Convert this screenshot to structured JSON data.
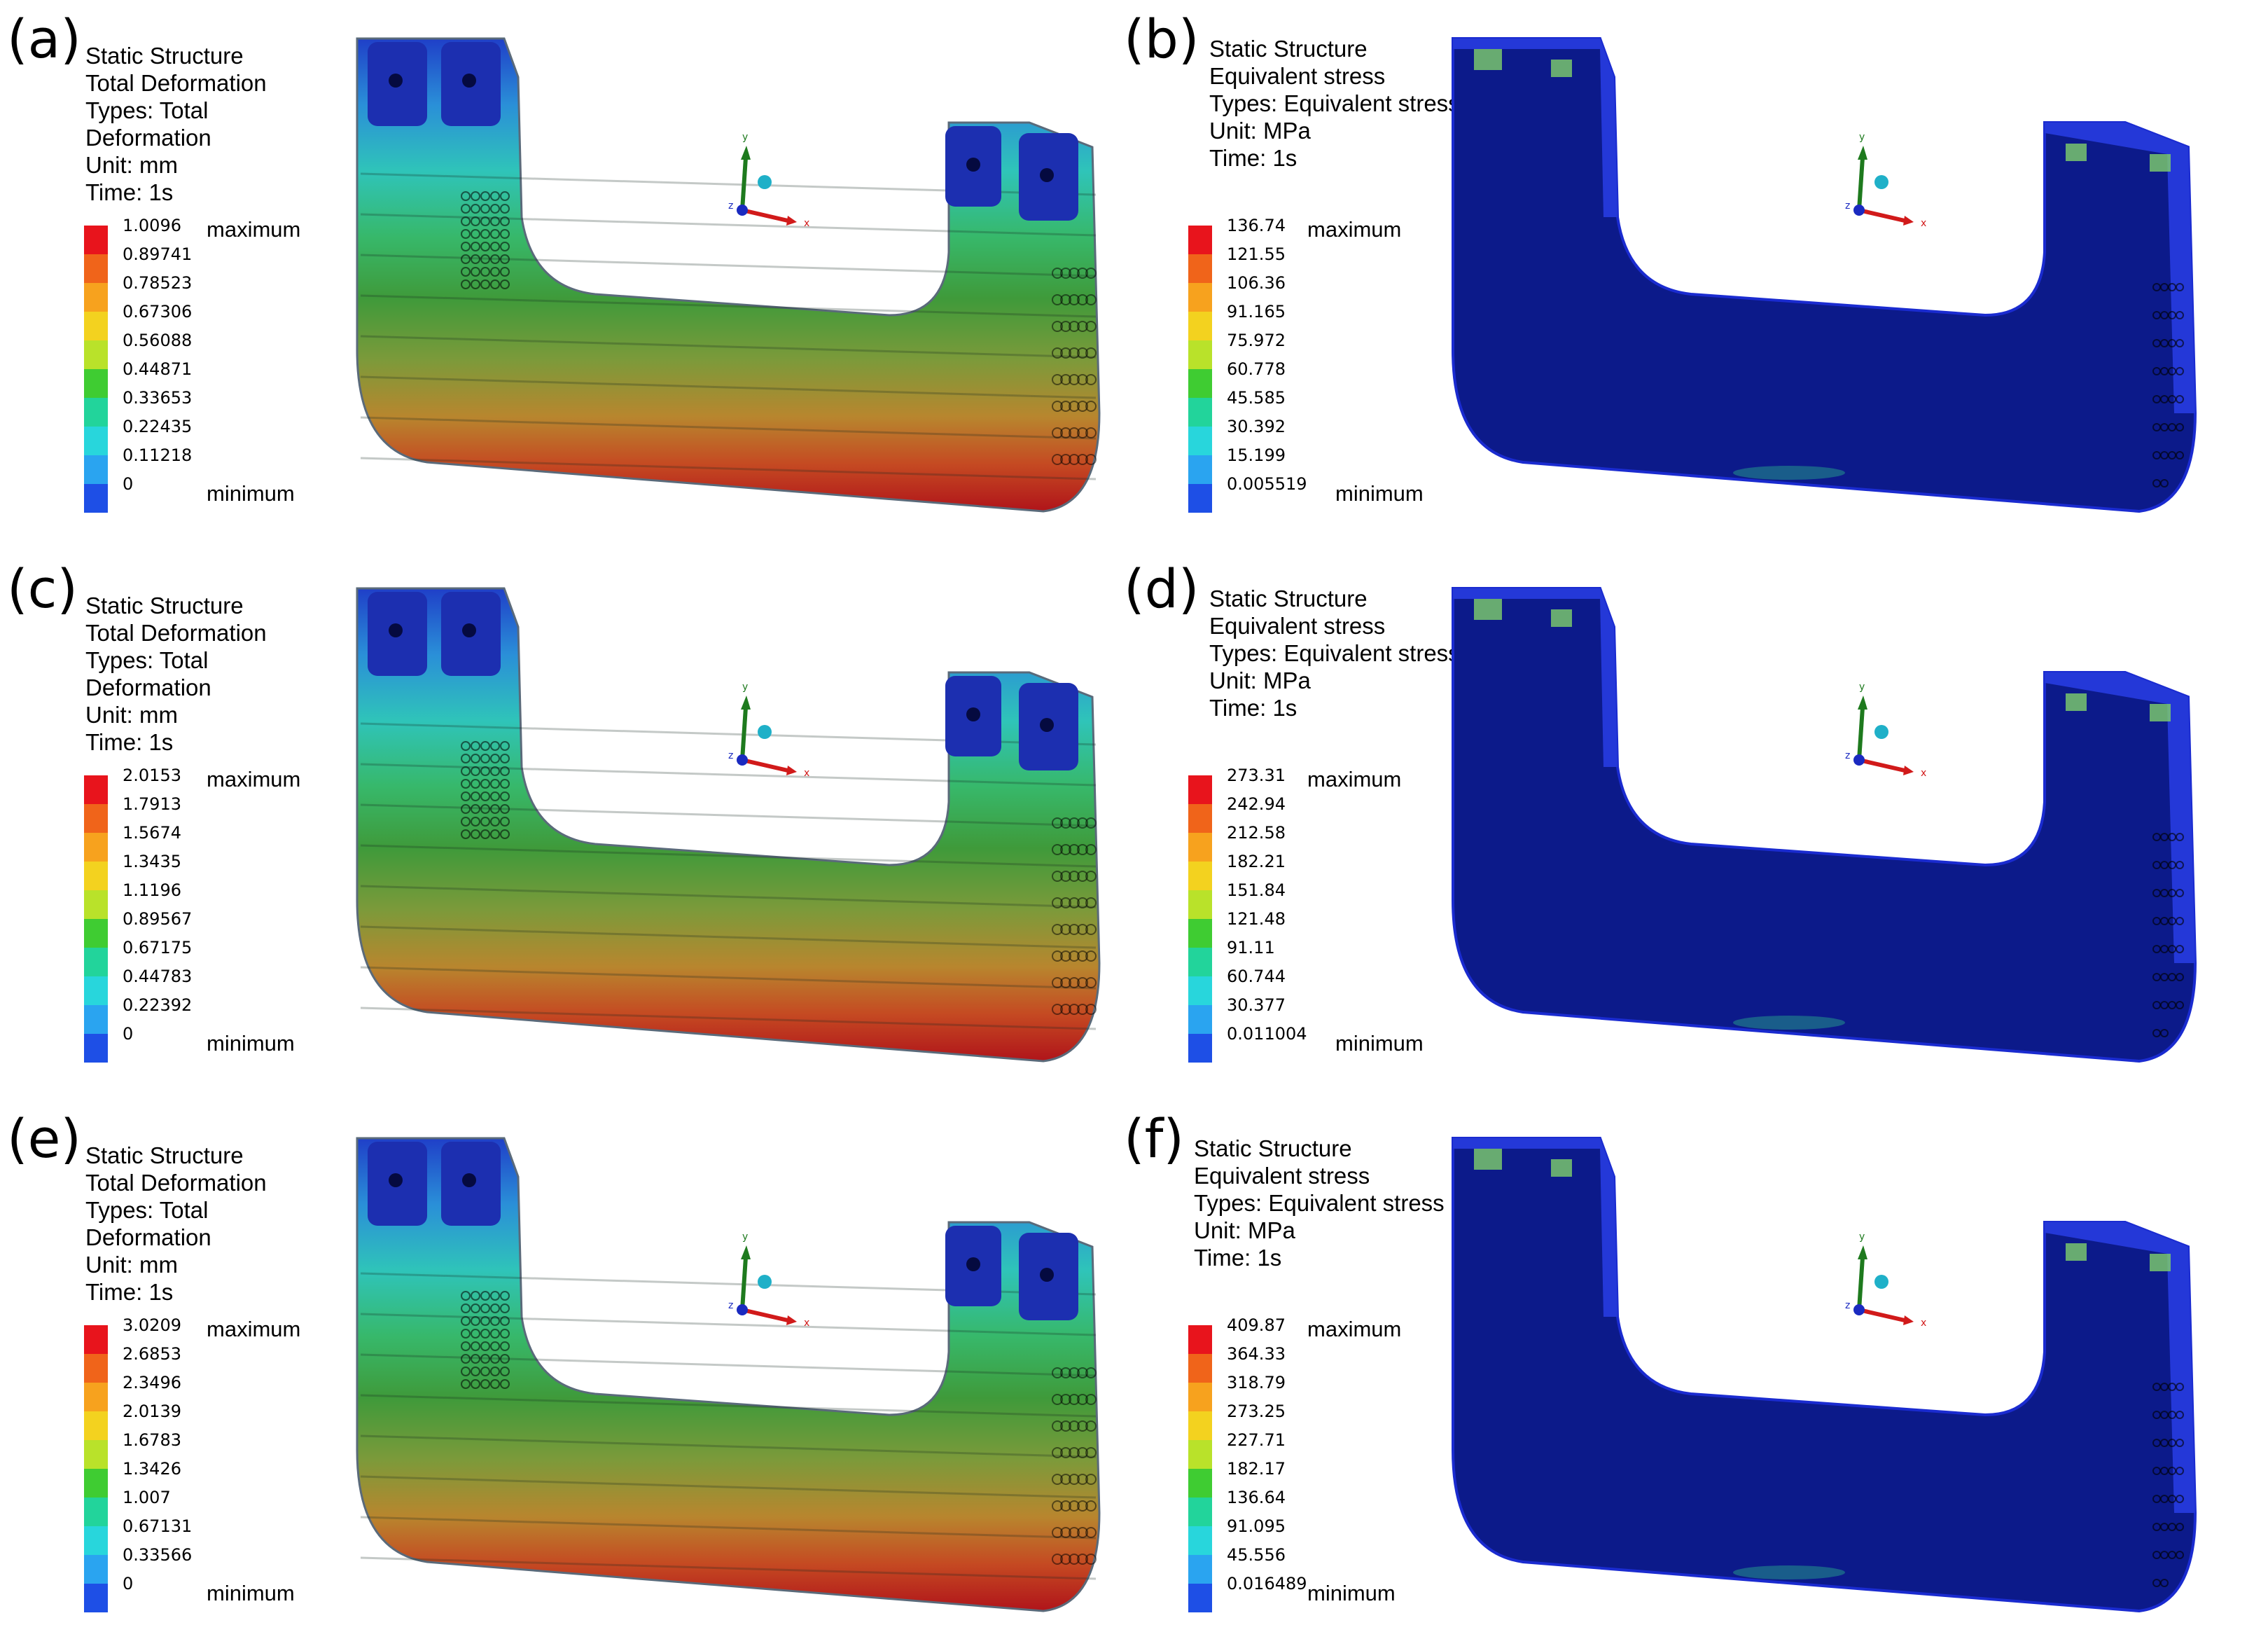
{
  "panels": [
    {
      "letter": "(a)",
      "lines": [
        "Static Structure",
        "Total Deformation",
        "Types: Total",
        "Deformation",
        "Unit: mm",
        "Time: 1s"
      ],
      "max_label": "maximum",
      "min_label": "minimum",
      "ticks": [
        "1.0096",
        "0.89741",
        "0.78523",
        "0.67306",
        "0.56088",
        "0.44871",
        "0.33653",
        "0.22435",
        "0.11218",
        "0"
      ],
      "kind": "deformation"
    },
    {
      "letter": "(b)",
      "lines": [
        "Static Structure",
        "Equivalent stress",
        "Types: Equivalent stress",
        "Unit: MPa",
        "Time: 1s"
      ],
      "max_label": "maximum",
      "min_label": "minimum",
      "ticks": [
        "136.74",
        "121.55",
        "106.36",
        "91.165",
        "75.972",
        "60.778",
        "45.585",
        "30.392",
        "15.199",
        "0.005519"
      ],
      "kind": "stress"
    },
    {
      "letter": "(c)",
      "lines": [
        "Static Structure",
        "Total Deformation",
        "Types: Total",
        "Deformation",
        "Unit: mm",
        "Time: 1s"
      ],
      "max_label": "maximum",
      "min_label": "minimum",
      "ticks": [
        "2.0153",
        "1.7913",
        "1.5674",
        "1.3435",
        "1.1196",
        "0.89567",
        "0.67175",
        "0.44783",
        "0.22392",
        "0"
      ],
      "kind": "deformation"
    },
    {
      "letter": "(d)",
      "lines": [
        "Static Structure",
        "Equivalent stress",
        "Types: Equivalent stress",
        "Unit: MPa",
        "Time: 1s"
      ],
      "max_label": "maximum",
      "min_label": "minimum",
      "ticks": [
        "273.31",
        "242.94",
        "212.58",
        "182.21",
        "151.84",
        "121.48",
        "91.11",
        "60.744",
        "30.377",
        "0.011004"
      ],
      "kind": "stress"
    },
    {
      "letter": "(e)",
      "lines": [
        "Static Structure",
        "Total Deformation",
        "Types: Total",
        "Deformation",
        "Unit: mm",
        "Time: 1s"
      ],
      "max_label": "maximum",
      "min_label": "minimum",
      "ticks": [
        "3.0209",
        "2.6853",
        "2.3496",
        "2.0139",
        "1.6783",
        "1.3426",
        "1.007",
        "0.67131",
        "0.33566",
        "0"
      ],
      "kind": "deformation"
    },
    {
      "letter": "(f)",
      "lines": [
        "Static Structure",
        "Equivalent stress",
        "Types: Equivalent stress",
        "Unit: MPa",
        "Time: 1s"
      ],
      "max_label": "maximum",
      "min_label": "minimum",
      "ticks": [
        "409.87",
        "364.33",
        "318.79",
        "273.25",
        "227.71",
        "182.17",
        "136.64",
        "91.095",
        "45.556",
        "0.016489"
      ],
      "kind": "stress"
    }
  ],
  "axis_labels": {
    "x": "x",
    "y": "y",
    "z": "z"
  },
  "legend_colors": [
    "#e8141c",
    "#f0641a",
    "#f7a21e",
    "#f3d21f",
    "#b9e22a",
    "#3fcc32",
    "#22d49b",
    "#28d6dc",
    "#2aa4f0",
    "#1e4fe6"
  ],
  "stress_body_color": "#0c1a8a"
}
